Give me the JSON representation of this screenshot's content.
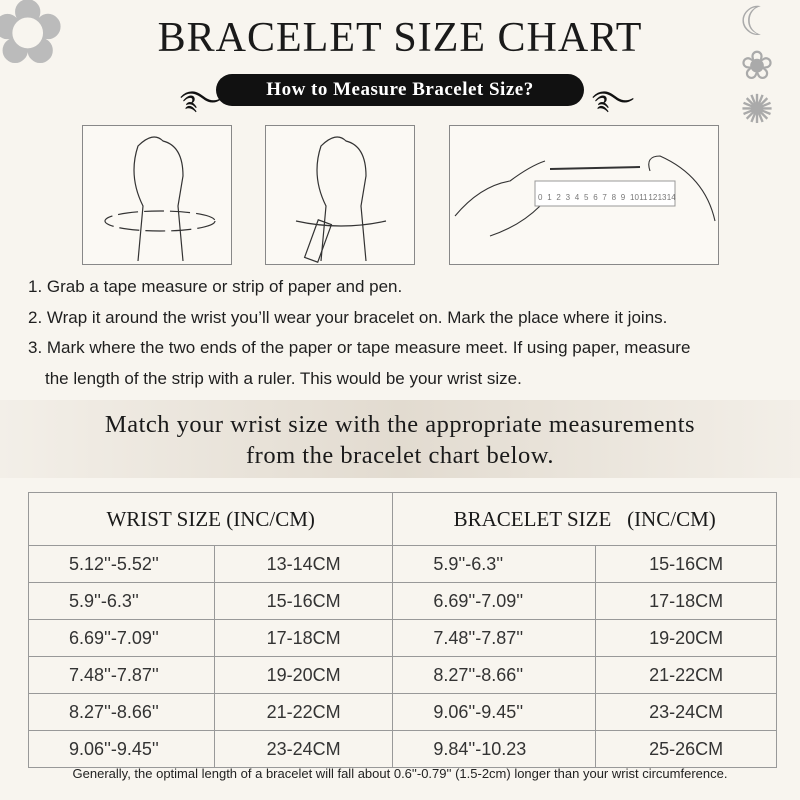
{
  "title": "BRACELET SIZE CHART",
  "subtitle": "How to Measure Bracelet Size?",
  "ruler_labels": [
    "0",
    "1",
    "2",
    "3",
    "4",
    "5",
    "6",
    "7",
    "8",
    "9",
    "10",
    "11",
    "12",
    "13",
    "14"
  ],
  "steps": [
    "1. Grab a tape measure or strip of paper and pen.",
    "2. Wrap it around the wrist you’ll wear your bracelet on. Mark the place where it joins.",
    "3. Mark where the two ends of the paper or tape measure meet. If using paper, measure",
    "the length of the strip with a ruler. This would be your wrist size."
  ],
  "banner": {
    "line1": "Match your wrist size with the appropriate measurements",
    "line2": "from the bracelet chart below."
  },
  "table": {
    "headers": [
      "WRIST SIZE (INC/CM)",
      "BRACELET SIZE   (INC/CM)"
    ],
    "rows": [
      [
        "5.12''-5.52''",
        "13-14CM",
        "5.9''-6.3''",
        "15-16CM"
      ],
      [
        "5.9''-6.3''",
        "15-16CM",
        "6.69''-7.09''",
        "17-18CM"
      ],
      [
        "6.69''-7.09''",
        "17-18CM",
        "7.48''-7.87''",
        "19-20CM"
      ],
      [
        "7.48''-7.87''",
        "19-20CM",
        "8.27''-8.66''",
        "21-22CM"
      ],
      [
        "8.27''-8.66''",
        "21-22CM",
        "9.06''-9.45''",
        "23-24CM"
      ],
      [
        "9.06''-9.45''",
        "23-24CM",
        "9.84''-10.23",
        "25-26CM"
      ]
    ]
  },
  "footnote": "Generally, the optimal length of a bracelet will fall about 0.6''-0.79'' (1.5-2cm) longer than your wrist circumference."
}
